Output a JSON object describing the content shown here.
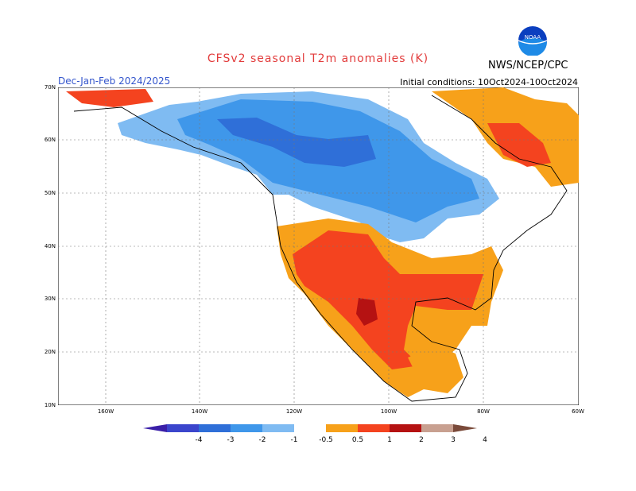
{
  "title": "CFSv2 seasonal T2m anomalies (K)",
  "period": "Dec-Jan-Feb 2024/2025",
  "initial_conditions": "Initial conditions: 10Oct2024-10Oct2024",
  "agency": "NWS/NCEP/CPC",
  "logo_text": "NOAA",
  "lat_labels": [
    "70N",
    "60N",
    "50N",
    "40N",
    "30N",
    "20N",
    "10N"
  ],
  "lon_labels": [
    "160W",
    "140W",
    "120W",
    "100W",
    "80W",
    "60W"
  ],
  "legend": {
    "ticks": [
      "-4",
      "-3",
      "-2",
      "-1",
      "-0.5",
      "0.5",
      "1",
      "2",
      "3",
      "4"
    ],
    "colors": [
      "#3a1fa8",
      "#3b45cc",
      "#2f6fd8",
      "#3f97ea",
      "#7fbbf2",
      "#ffffff",
      "#f7a11a",
      "#f4431f",
      "#b51212",
      "#c8a090",
      "#7a4a3a"
    ]
  },
  "map_colors": {
    "cold_light": "#7fbbf2",
    "cold_mid": "#3f97ea",
    "cold_dark": "#2f6fd8",
    "warm_light": "#f7a11a",
    "warm_mid": "#f4431f",
    "warm_dark": "#b51212"
  }
}
